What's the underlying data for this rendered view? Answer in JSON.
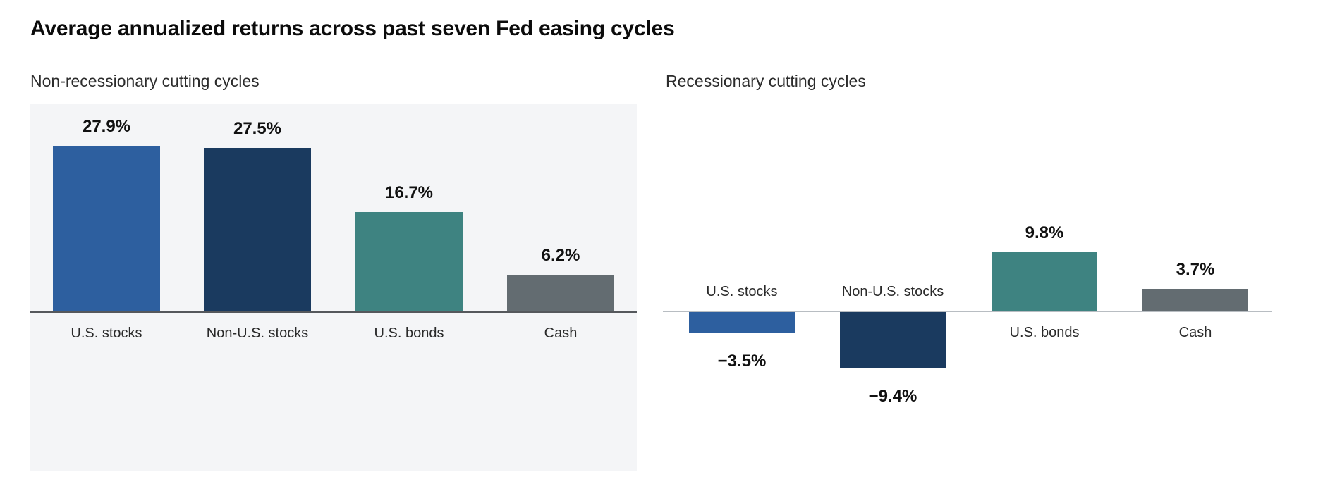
{
  "page": {
    "title": "Average annualized returns across past seven Fed easing cycles"
  },
  "colors": {
    "background": "#ffffff",
    "title_text": "#0b0b0b",
    "subtitle_text": "#2c2c2c",
    "value_label_text": "#111111",
    "category_label_text": "#2a2a2a",
    "us_stocks_blue": "#2d5f9f",
    "non_us_stocks_navy": "#1a3a5f",
    "us_bonds_teal": "#3e8381",
    "cash_gray": "#636c71",
    "left_panel_background": "#f4f5f7",
    "left_axis_line": "#55585c",
    "right_axis_line": "#b8bdc2"
  },
  "chart_data": [
    {
      "type": "bar",
      "title": "Non-recessionary cutting cycles",
      "categories": [
        "U.S. stocks",
        "Non-U.S. stocks",
        "U.S. bonds",
        "Cash"
      ],
      "values": [
        27.9,
        27.5,
        16.7,
        6.2
      ],
      "data_labels": [
        "27.9%",
        "27.5%",
        "16.7%",
        "6.2%"
      ],
      "bar_colors": [
        "#2d5f9f",
        "#1a3a5f",
        "#3e8381",
        "#636c71"
      ],
      "xlabel": "",
      "ylabel": "",
      "ylim": [
        0,
        32
      ],
      "grid": false,
      "legend": false,
      "panel_background": "#f4f5f7",
      "axis_line_color": "#55585c",
      "value_label_position": "above bars",
      "category_label_position": "below baseline"
    },
    {
      "type": "bar",
      "title": "Recessionary cutting cycles",
      "categories": [
        "U.S. stocks",
        "Non-U.S. stocks",
        "U.S. bonds",
        "Cash"
      ],
      "values": [
        -3.5,
        -9.4,
        9.8,
        3.7
      ],
      "data_labels": [
        "−3.5%",
        "−9.4%",
        "9.8%",
        "3.7%"
      ],
      "bar_colors": [
        "#2d5f9f",
        "#1a3a5f",
        "#3e8381",
        "#636c71"
      ],
      "xlabel": "",
      "ylabel": "",
      "ylim": [
        -12,
        12
      ],
      "grid": false,
      "legend": false,
      "panel_background": "#ffffff",
      "axis_line_color": "#b8bdc2",
      "value_label_position": "above positive bars, below negative bars",
      "category_label_position": "below baseline for positive bars, above baseline for negative bars"
    }
  ]
}
